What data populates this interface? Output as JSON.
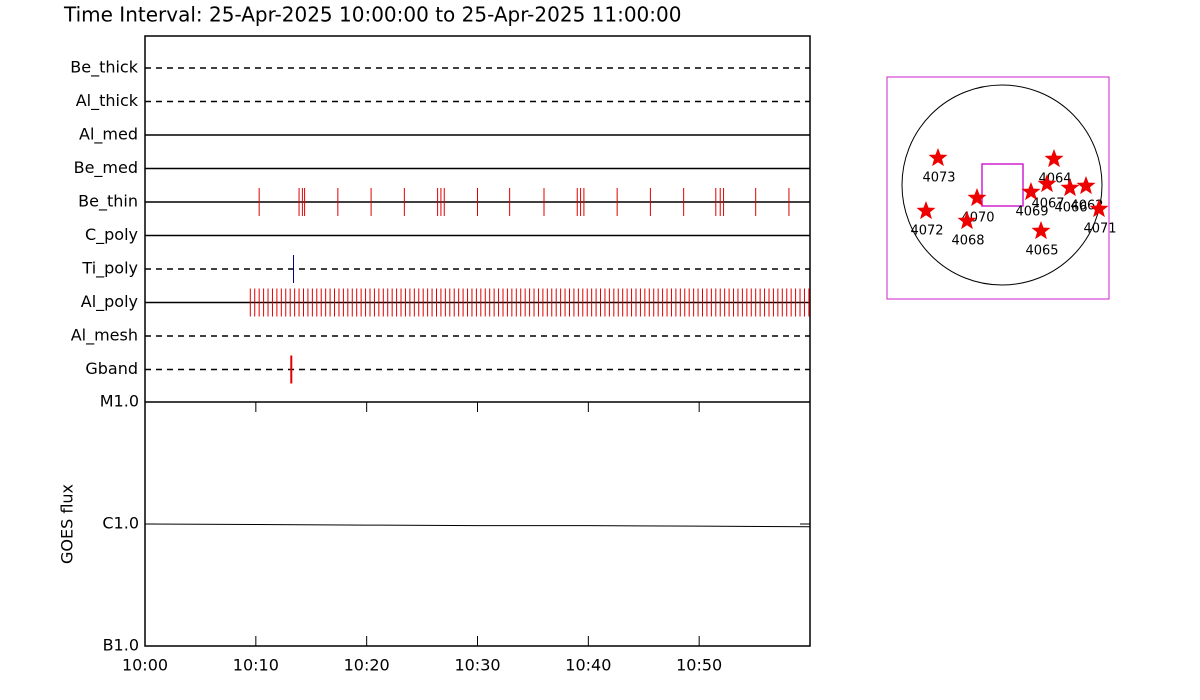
{
  "chart_data": [
    {
      "type": "timeline",
      "title": "Time Interval: 25-Apr-2025 10:00:00 to 25-Apr-2025 11:00:00",
      "xlim": [
        0,
        60
      ],
      "rows": [
        {
          "name": "Be_thick",
          "style": "dashed",
          "color": "#e00000",
          "x": []
        },
        {
          "name": "Al_thick",
          "style": "dashed",
          "color": "#e00000",
          "x": []
        },
        {
          "name": "Al_med",
          "style": "solid",
          "color": "#e00000",
          "x": []
        },
        {
          "name": "Be_med",
          "style": "solid",
          "color": "#e00000",
          "x": []
        },
        {
          "name": "Be_thin",
          "style": "solid",
          "color": "#e00000",
          "x": [
            10.3,
            13.9,
            14.2,
            14.4,
            17.4,
            20.4,
            23.4,
            26.4,
            26.7,
            27.0,
            30.0,
            32.9,
            36.0,
            39.0,
            39.3,
            39.6,
            42.6,
            45.6,
            48.6,
            51.5,
            51.9,
            52.2,
            55.1,
            58.1
          ]
        },
        {
          "name": "C_poly",
          "style": "solid",
          "color": "#e00000",
          "x": []
        },
        {
          "name": "Ti_poly",
          "style": "dashed",
          "color": "#000080",
          "x": [
            13.4
          ]
        },
        {
          "name": "Al_poly",
          "style": "solid",
          "color": "#e00000",
          "x": [
            9.5,
            9.9,
            10.3,
            10.7,
            11.1,
            11.5,
            11.9,
            12.3,
            12.7,
            13.1,
            13.5,
            13.9,
            14.3,
            14.7,
            15.1,
            15.5,
            15.9,
            16.3,
            16.7,
            17.1,
            17.5,
            17.9,
            18.3,
            18.7,
            19.1,
            19.5,
            19.9,
            20.3,
            20.7,
            21.1,
            21.5,
            21.9,
            22.3,
            22.7,
            23.1,
            23.5,
            23.9,
            24.3,
            24.7,
            25.1,
            25.5,
            25.9,
            26.3,
            26.7,
            27.1,
            27.5,
            27.9,
            28.3,
            28.7,
            29.1,
            29.5,
            29.9,
            30.3,
            30.7,
            31.1,
            31.5,
            31.9,
            32.3,
            32.7,
            33.1,
            33.5,
            33.9,
            34.3,
            34.7,
            35.1,
            35.5,
            35.9,
            36.3,
            36.7,
            37.1,
            37.5,
            37.9,
            38.3,
            38.7,
            39.1,
            39.5,
            39.9,
            40.3,
            40.7,
            41.1,
            41.5,
            41.9,
            42.3,
            42.7,
            43.1,
            43.5,
            43.9,
            44.3,
            44.7,
            45.1,
            45.5,
            45.9,
            46.3,
            46.7,
            47.1,
            47.5,
            47.9,
            48.3,
            48.7,
            49.1,
            49.5,
            49.9,
            50.3,
            50.7,
            51.1,
            51.5,
            51.9,
            52.3,
            52.7,
            53.1,
            53.5,
            53.9,
            54.3,
            54.7,
            55.1,
            55.5,
            55.9,
            56.3,
            56.7,
            57.1,
            57.5,
            57.9,
            58.3,
            58.7,
            59.1,
            59.5,
            59.9
          ]
        },
        {
          "name": "Al_mesh",
          "style": "dashed",
          "color": "#e00000",
          "x": []
        },
        {
          "name": "Gband",
          "style": "dashed",
          "color": "#e00000",
          "x": [
            13.2
          ]
        }
      ]
    },
    {
      "type": "line",
      "ylabel": "GOES flux",
      "log": true,
      "color": "#000000",
      "x": [
        0,
        10,
        20,
        30,
        40,
        50,
        60
      ],
      "values": [
        1e-06,
        9.9e-07,
        9.8e-07,
        9.7e-07,
        9.7e-07,
        9.6e-07,
        9.5e-07
      ],
      "xlim": [
        0,
        60
      ],
      "xticks": [
        {
          "value": 0,
          "label": "10:00"
        },
        {
          "value": 10,
          "label": "10:10"
        },
        {
          "value": 20,
          "label": "10:20"
        },
        {
          "value": 30,
          "label": "10:30"
        },
        {
          "value": 40,
          "label": "10:40"
        },
        {
          "value": 50,
          "label": "10:50"
        }
      ],
      "ylim": [
        1e-07,
        1e-05
      ],
      "yticks": [
        {
          "value": 1e-05,
          "label": "M1.0"
        },
        {
          "value": 1e-06,
          "label": "C1.0"
        },
        {
          "value": 1e-07,
          "label": "B1.0"
        }
      ]
    }
  ],
  "sun_map": {
    "regions": [
      "4073",
      "4064",
      "4067",
      "4069",
      "4066",
      "4062",
      "4070",
      "4072",
      "4068",
      "4065",
      "4071"
    ]
  }
}
